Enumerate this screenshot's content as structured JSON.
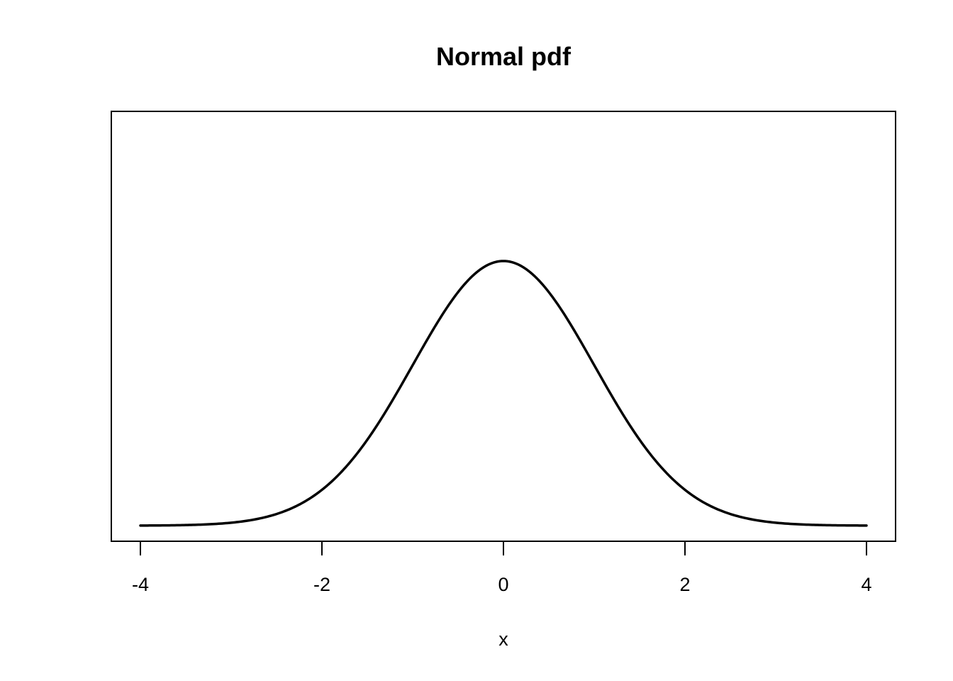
{
  "chart_data": {
    "type": "line",
    "title": "Normal pdf",
    "xlabel": "x",
    "ylabel": "",
    "xlim": [
      -4,
      4
    ],
    "ylim": [
      0,
      0.7
    ],
    "x_ticks": [
      -4,
      -2,
      0,
      2,
      4
    ],
    "x_tick_labels": [
      "-4",
      "-2",
      "0",
      "2",
      "4"
    ],
    "y_axis_shown": false,
    "grid": false,
    "legend": "none",
    "line_color": "#000000",
    "series": [
      {
        "x": [
          -4,
          -3.5,
          -3,
          -2.5,
          -2,
          -1.75,
          -1.5,
          -1.25,
          -1,
          -0.75,
          -0.5,
          -0.25,
          0,
          0.25,
          0.5,
          0.75,
          1,
          1.25,
          1.5,
          1.75,
          2,
          2.5,
          3,
          3.5,
          4
        ],
        "y": [
          0.0001,
          0.0009,
          0.0044,
          0.0175,
          0.054,
          0.0863,
          0.1295,
          0.1826,
          0.242,
          0.3011,
          0.3521,
          0.3867,
          0.3989,
          0.3867,
          0.3521,
          0.3011,
          0.242,
          0.1826,
          0.1295,
          0.0863,
          0.054,
          0.0175,
          0.0044,
          0.0009,
          0.0001
        ]
      }
    ]
  }
}
